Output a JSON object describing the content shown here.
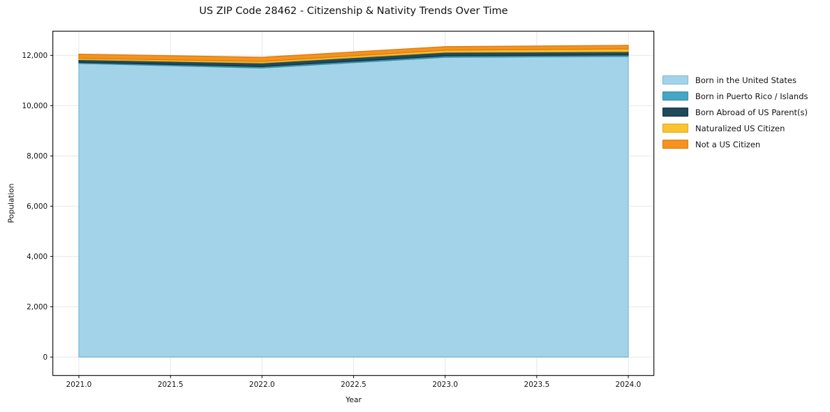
{
  "chart_data": {
    "type": "area",
    "stacked": true,
    "title": "US ZIP Code 28462 - Citizenship & Nativity Trends Over Time",
    "xlabel": "Year",
    "ylabel": "Population",
    "x": [
      2021,
      2022,
      2023,
      2024
    ],
    "series": [
      {
        "name": "Born in the United States",
        "color": "#a3d3e8",
        "edge": "#7cb8d4",
        "values": [
          11680,
          11500,
          11925,
          11960
        ]
      },
      {
        "name": "Born in Puerto Rico / Islands",
        "color": "#45a7c4",
        "edge": "#338ba6",
        "values": [
          40,
          55,
          55,
          55
        ]
      },
      {
        "name": "Born Abroad of US Parent(s)",
        "color": "#1f4a5c",
        "edge": "#15323e",
        "values": [
          110,
          140,
          140,
          130
        ]
      },
      {
        "name": "Naturalized US Citizen",
        "color": "#fcc330",
        "edge": "#dfa81b",
        "values": [
          55,
          65,
          85,
          110
        ]
      },
      {
        "name": "Not a US Citizen",
        "color": "#f6921e",
        "edge": "#d87c12",
        "values": [
          165,
          165,
          140,
          145
        ]
      }
    ],
    "totals": [
      12050,
      11925,
      12345,
      12400
    ],
    "xlim": [
      2020.8578,
      2024.1398
    ],
    "ylim": [
      -733,
      12960
    ],
    "xtick_values": [
      2021.0,
      2021.5,
      2022.0,
      2022.5,
      2023.0,
      2023.5,
      2024.0
    ],
    "xtick_labels": [
      "2021.0",
      "2021.5",
      "2022.0",
      "2022.5",
      "2023.0",
      "2023.5",
      "2024.0"
    ],
    "ytick_values": [
      0,
      2000,
      4000,
      6000,
      8000,
      10000,
      12000
    ],
    "ytick_labels": [
      "0",
      "2,000",
      "4,000",
      "6,000",
      "8,000",
      "10,000",
      "12,000"
    ],
    "grid": true,
    "grid_color": "#e7e7ea",
    "spine_color": "#000000",
    "tick_color": "#000000",
    "legend_position": "right of plot, upper area",
    "background_color": "#ffffff"
  }
}
